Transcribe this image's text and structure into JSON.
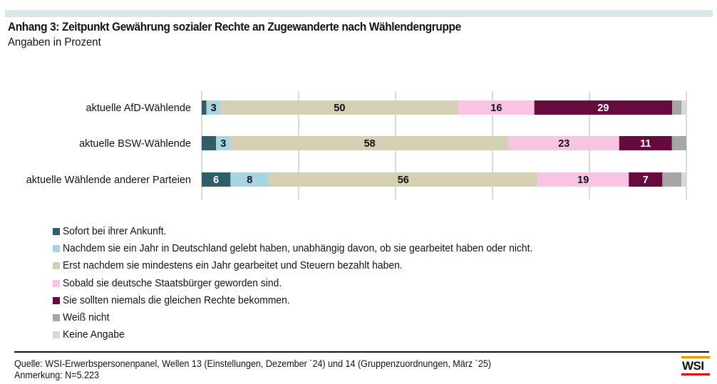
{
  "header": {
    "title": "Anhang 3: Zeitpunkt Gewährung sozialer Rechte an Zugewanderte nach Wählendengruppe",
    "subtitle": "Angaben in Prozent"
  },
  "chart_data": {
    "type": "bar",
    "orientation": "horizontal",
    "stacked": true,
    "title": "Anhang 3: Zeitpunkt Gewährung sozialer Rechte an Zugewanderte nach Wählendengruppe",
    "subtitle": "Angaben in Prozent",
    "xlabel": "",
    "ylabel": "",
    "xlim": [
      0,
      100
    ],
    "grid": true,
    "grid_step": 20,
    "legend_position": "bottom",
    "categories": [
      "aktuelle AfD-Wählende",
      "aktuelle BSW-Wählende",
      "aktuelle Wählende anderer Parteien"
    ],
    "series": [
      {
        "name": "Sofort bei ihrer Ankunft.",
        "color": "#2e5f68",
        "label_color": "#ffffff",
        "values": [
          1,
          3,
          6
        ],
        "labels": [
          "",
          "",
          "6"
        ]
      },
      {
        "name": "Nachdem sie ein Jahr in Deutschland gelebt haben, unabhängig davon, ob sie gearbeitet haben oder nicht.",
        "color": "#a8d5df",
        "label_color": "#111111",
        "values": [
          3,
          3,
          8
        ],
        "labels": [
          "3",
          "3",
          "8"
        ]
      },
      {
        "name": "Erst nachdem sie mindestens ein Jahr gearbeitet und Steuern bezahlt haben.",
        "color": "#d5d0b3",
        "label_color": "#111111",
        "values": [
          50,
          58,
          56
        ],
        "labels": [
          "50",
          "58",
          "56"
        ]
      },
      {
        "name": "Sobald sie deutsche Staatsbürger geworden sind.",
        "color": "#f9c4e4",
        "label_color": "#111111",
        "values": [
          16,
          23,
          19
        ],
        "labels": [
          "16",
          "23",
          "19"
        ]
      },
      {
        "name": "Sie sollten niemals die gleichen Rechte bekommen.",
        "color": "#670a3e",
        "label_color": "#ffffff",
        "values": [
          29,
          11,
          7
        ],
        "labels": [
          "29",
          "11",
          "7"
        ]
      },
      {
        "name": "Weiß nicht",
        "color": "#a6a6a6",
        "label_color": "#111111",
        "values": [
          2,
          3,
          4
        ],
        "labels": [
          "",
          "",
          ""
        ]
      },
      {
        "name": "Keine Angabe",
        "color": "#d9d9d9",
        "label_color": "#111111",
        "values": [
          1,
          0,
          1
        ],
        "labels": [
          "",
          "",
          ""
        ]
      }
    ]
  },
  "footer": {
    "source": "Quelle: WSI-Erwerbspersonenpanel, Wellen 13 (Einstellungen, Dezember ´24) und 14 (Gruppenzuordnungen, März ´25)",
    "note": "Anmerkung: N=5.223",
    "logo": "WSI"
  },
  "colors": {
    "top_band": "#d6e8ea",
    "gridline": "#d9d9d9",
    "logo_top": "#f39200",
    "logo_bottom": "#e30613"
  }
}
